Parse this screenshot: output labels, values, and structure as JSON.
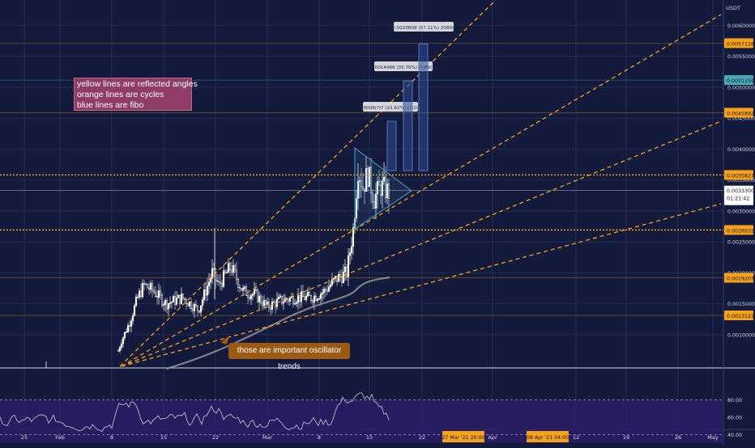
{
  "chart_data": {
    "type": "candlestick",
    "currency": "USDT",
    "ylim": [
      0.00055,
      0.0065
    ],
    "price_ticks": [
      "0.0060000",
      "0.0055000",
      "0.0050000",
      "0.0045000",
      "0.0040000",
      "0.0035000",
      "0.0030000",
      "0.0025000",
      "0.0020000",
      "0.0015000",
      "0.0010000"
    ],
    "x_ticks": [
      "25",
      "Feb",
      "8",
      "15",
      "22",
      "Mar",
      "8",
      "15",
      "22",
      "Apr",
      "12",
      "19",
      "26",
      "May"
    ],
    "x_highlights": [
      "27 Mar '21  20:00",
      "08 Apr '21  04:00"
    ],
    "price_levels": [
      {
        "value": "0.0057128",
        "color": "#f7a21b"
      },
      {
        "value": "0.0051159",
        "color": "#4aa8b8"
      },
      {
        "value": "0.0045892",
        "color": "#f7a21b"
      },
      {
        "value": "0.0035827",
        "color": "#f7a21b"
      },
      {
        "value": "0.0026932",
        "color": "#f7a21b"
      },
      {
        "value": "0.0019207",
        "color": "#f7a21b"
      },
      {
        "value": "0.0013121",
        "color": "#f7a21b"
      }
    ],
    "last_price": {
      "value": "0.0033300",
      "countdown": "01:21:42"
    },
    "projections": [
      {
        "label": "0.0008(?)7 (22.62%) (?)207",
        "top": 0.00445
      },
      {
        "label": "0.0014488 (35.76%) (?)89(?)",
        "top": 0.0051
      },
      {
        "label": "0.0020809 (57.11%) 20809",
        "top": 0.0057
      }
    ],
    "oscillator": {
      "ticks": [
        "80.00",
        "60.00",
        "40.00"
      ],
      "range": [
        30,
        90
      ]
    },
    "annotations": [
      {
        "lines": [
          "yellow lines are reflected angles",
          "orange lines are cycles",
          "blue lines are fibo"
        ]
      },
      {
        "lines": [
          "those are important oscillator trends"
        ]
      }
    ],
    "colors": {
      "background": "#131a3b",
      "orange": "#f7a21b",
      "fib": "#4a9fd1",
      "grid": "#232c54",
      "up": "#ffffff",
      "ma": "#9a9a9a",
      "oscillator_band": "#2b1d66"
    }
  }
}
